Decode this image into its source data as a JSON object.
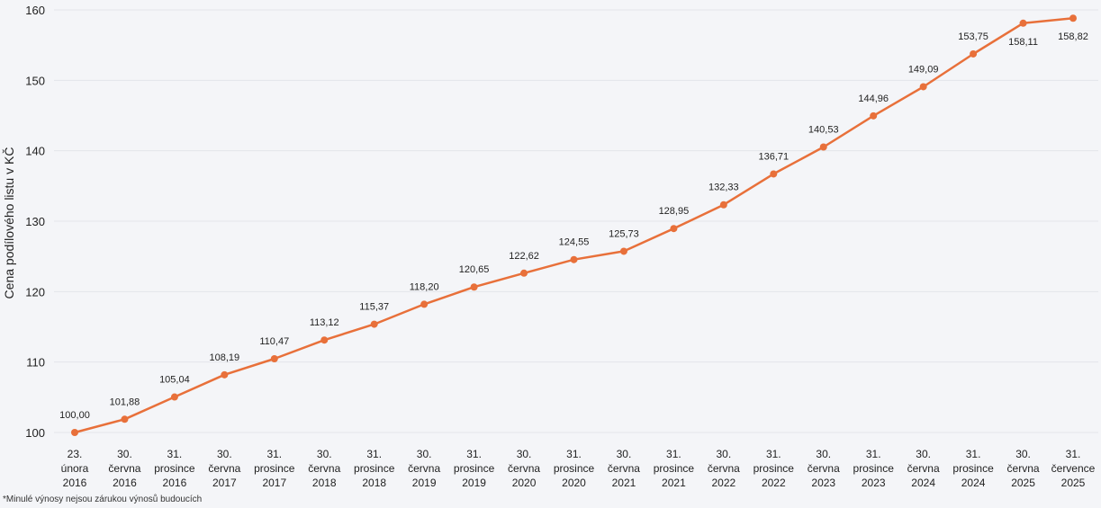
{
  "chart_data": {
    "type": "line",
    "ylabel": "Cena podílového listu v KČ",
    "ylim": [
      100,
      160
    ],
    "y_ticks": [
      "100",
      "110",
      "120",
      "130",
      "140",
      "150",
      "160"
    ],
    "grid": true,
    "categories": [
      [
        "23.",
        "února",
        "2016"
      ],
      [
        "30.",
        "června",
        "2016"
      ],
      [
        "31.",
        "prosince",
        "2016"
      ],
      [
        "30.",
        "června",
        "2017"
      ],
      [
        "31.",
        "prosince",
        "2017"
      ],
      [
        "30.",
        "června",
        "2018"
      ],
      [
        "31.",
        "prosince",
        "2018"
      ],
      [
        "30.",
        "června",
        "2019"
      ],
      [
        "31.",
        "prosince",
        "2019"
      ],
      [
        "30.",
        "června",
        "2020"
      ],
      [
        "31.",
        "prosince",
        "2020"
      ],
      [
        "30.",
        "června",
        "2021"
      ],
      [
        "31.",
        "prosince",
        "2021"
      ],
      [
        "30.",
        "června",
        "2022"
      ],
      [
        "31.",
        "prosince",
        "2022"
      ],
      [
        "30.",
        "června",
        "2023"
      ],
      [
        "31.",
        "prosince",
        "2023"
      ],
      [
        "30.",
        "června",
        "2024"
      ],
      [
        "31.",
        "prosince",
        "2024"
      ],
      [
        "30.",
        "června",
        "2025"
      ],
      [
        "31.",
        "července",
        "2025"
      ]
    ],
    "values": [
      100.0,
      101.88,
      105.04,
      108.19,
      110.47,
      113.12,
      115.37,
      118.2,
      120.65,
      122.62,
      124.55,
      125.73,
      128.95,
      132.33,
      136.71,
      140.53,
      144.96,
      149.09,
      153.75,
      158.11,
      158.82
    ],
    "value_labels": [
      "100,00",
      "101,88",
      "105,04",
      "108,19",
      "110,47",
      "113,12",
      "115,37",
      "118,20",
      "120,65",
      "122,62",
      "124,55",
      "125,73",
      "128,95",
      "132,33",
      "136,71",
      "140,53",
      "144,96",
      "149,09",
      "153,75",
      "158,11",
      "158,82"
    ],
    "line_color": "#e8703a"
  },
  "footnote": "*Minulé výnosy nejsou zárukou výnosů budoucích"
}
